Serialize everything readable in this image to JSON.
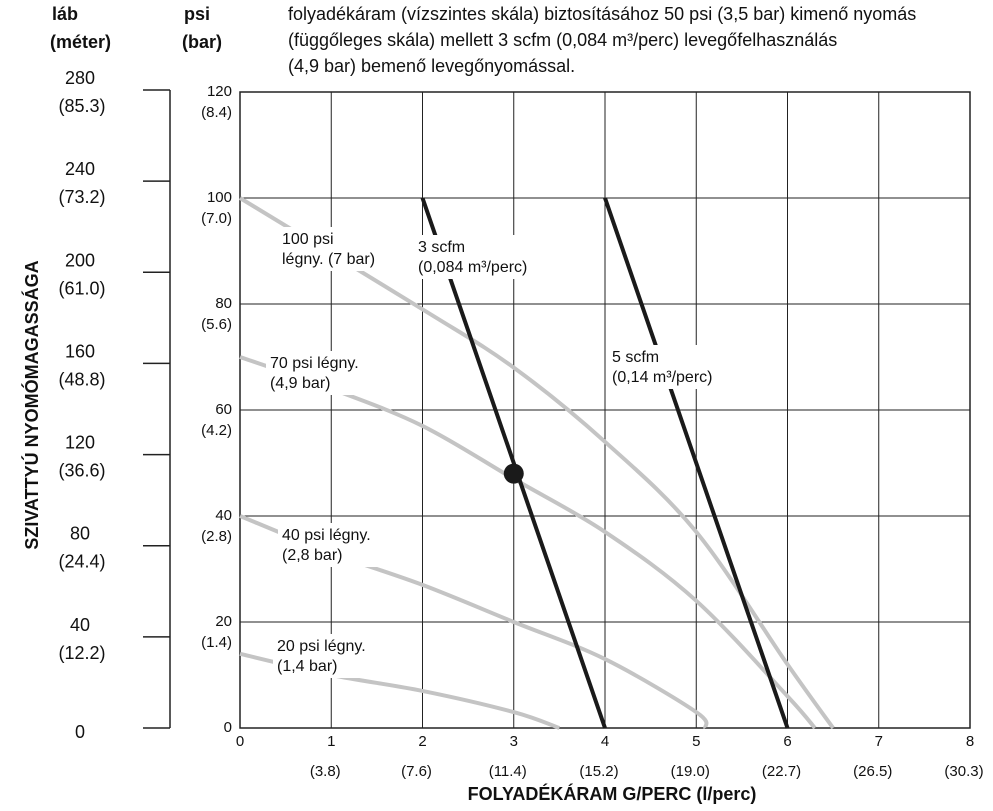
{
  "chart_data": {
    "type": "line",
    "description_text": [
      "folyadékáram (vízszintes skála) biztosításához 50 psi (3,5 bar) kimenő nyomás",
      "(függőleges skála) mellett 3 scfm (0,084 m³/perc) levegőfelhasználás",
      "(4,9 bar) bemenő levegőnyomással."
    ],
    "left_axis": {
      "title_line1": "láb",
      "title_line2": "(méter)",
      "ticks": [
        {
          "ft": 280,
          "m": "(85.3)"
        },
        {
          "ft": 240,
          "m": "(73.2)"
        },
        {
          "ft": 200,
          "m": "(61.0)"
        },
        {
          "ft": 160,
          "m": "(48.8)"
        },
        {
          "ft": 120,
          "m": "(36.6)"
        },
        {
          "ft": 80,
          "m": "(24.4)"
        },
        {
          "ft": 40,
          "m": "(12.2)"
        },
        {
          "ft": 0,
          "m": ""
        }
      ],
      "range": [
        0,
        280
      ]
    },
    "y_axis": {
      "title_line1": "psi",
      "title_line2": "(bar)",
      "ylabel": "SZIVATTYÚ NYOMÓMAGASSÁGA",
      "range": [
        0,
        120
      ],
      "ticks": [
        {
          "psi": 120,
          "bar": "(8.4)"
        },
        {
          "psi": 100,
          "bar": "(7.0)"
        },
        {
          "psi": 80,
          "bar": "(5.6)"
        },
        {
          "psi": 60,
          "bar": "(4.2)"
        },
        {
          "psi": 40,
          "bar": "(2.8)"
        },
        {
          "psi": 20,
          "bar": "(1.4)"
        },
        {
          "psi": 0,
          "bar": ""
        }
      ]
    },
    "x_axis": {
      "xlabel": "FOLYADÉKÁRAM G/PERC (l/perc)",
      "range": [
        0,
        8
      ],
      "ticks": [
        {
          "gpm": 0,
          "lpm": ""
        },
        {
          "gpm": 1,
          "lpm": "(3.8)"
        },
        {
          "gpm": 2,
          "lpm": "(7.6)"
        },
        {
          "gpm": 3,
          "lpm": "(11.4)"
        },
        {
          "gpm": 4,
          "lpm": "(15.2)"
        },
        {
          "gpm": 5,
          "lpm": "(19.0)"
        },
        {
          "gpm": 6,
          "lpm": "(22.7)"
        },
        {
          "gpm": 7,
          "lpm": "(26.5)"
        },
        {
          "gpm": 8,
          "lpm": "(30.3)"
        }
      ]
    },
    "grid": true,
    "pressure_curves": [
      {
        "label_line1": "100 psi",
        "label_line2": "légny. (7 bar)",
        "color": "#c4c4c4",
        "points": [
          [
            0,
            100
          ],
          [
            2,
            79
          ],
          [
            3,
            68
          ],
          [
            4,
            54
          ],
          [
            5,
            37
          ],
          [
            6,
            12
          ],
          [
            6.5,
            0
          ]
        ]
      },
      {
        "label_line1": "70 psi légny.",
        "label_line2": "(4,9 bar)",
        "color": "#c4c4c4",
        "points": [
          [
            0,
            70
          ],
          [
            1,
            64
          ],
          [
            2,
            57
          ],
          [
            3,
            47
          ],
          [
            4,
            37
          ],
          [
            5,
            24
          ],
          [
            6,
            6
          ],
          [
            6.3,
            0
          ]
        ]
      },
      {
        "label_line1": "40 psi légny.",
        "label_line2": "(2,8 bar)",
        "color": "#c4c4c4",
        "points": [
          [
            0,
            40
          ],
          [
            1,
            33
          ],
          [
            2,
            27
          ],
          [
            3,
            20
          ],
          [
            4,
            13
          ],
          [
            5,
            3
          ],
          [
            5.1,
            0
          ]
        ]
      },
      {
        "label_line1": "20 psi légny.",
        "label_line2": "(1,4 bar)",
        "color": "#c4c4c4",
        "points": [
          [
            0,
            14
          ],
          [
            1,
            10
          ],
          [
            2,
            7
          ],
          [
            3,
            3
          ],
          [
            3.5,
            0
          ]
        ]
      }
    ],
    "air_consumption_lines": [
      {
        "label_line1": "3 scfm",
        "label_line2": "(0,084 m³/perc)",
        "color": "#1a1a1a",
        "points": [
          [
            2,
            100
          ],
          [
            4,
            0
          ]
        ]
      },
      {
        "label_line1": "5 scfm",
        "label_line2": "(0,14 m³/perc)",
        "color": "#1a1a1a",
        "points": [
          [
            4,
            100
          ],
          [
            6,
            0
          ]
        ]
      }
    ],
    "marker": {
      "x": 3,
      "y": 48,
      "color": "#1a1a1a"
    }
  }
}
